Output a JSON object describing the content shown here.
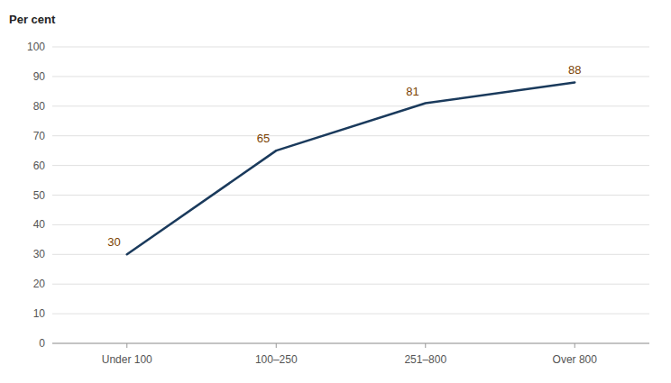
{
  "chart_data": {
    "type": "line",
    "categories": [
      "Under 100",
      "100–250",
      "251–800",
      "Over 800"
    ],
    "values": [
      30,
      65,
      81,
      88
    ],
    "color": "#1a3a5c",
    "ylabel": "Per cent",
    "ylim": [
      0,
      100
    ],
    "yticks": [
      0,
      10,
      20,
      30,
      40,
      50,
      60,
      70,
      80,
      90,
      100
    ],
    "grid": true,
    "data_labels": true
  }
}
